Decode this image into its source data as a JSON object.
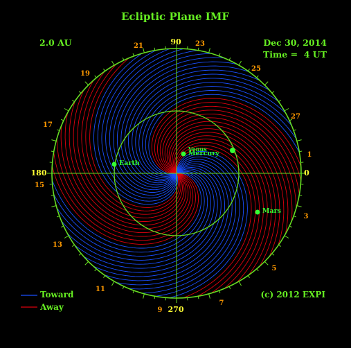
{
  "title": "Ecliptic Plane IMF",
  "scale_label": "2.0 AU",
  "date": "Dec 30, 2014",
  "time": "Time =  4 UT",
  "copyright": "(c) 2012 EXPI",
  "legend": {
    "toward": "Toward",
    "away": "Away"
  },
  "colors": {
    "toward": "#1a4fff",
    "away": "#e0000e",
    "grid": "#66dd22",
    "title": "#66ee22",
    "tick_label": "#ff9900",
    "angle_label": "#ffff33",
    "planet": "#33ff33"
  },
  "angle_labels": [
    "90",
    "180",
    "0",
    "270"
  ],
  "rotation_labels": [
    "21",
    "23",
    "25",
    "27",
    "1",
    "3",
    "5",
    "7",
    "9",
    "11",
    "13",
    "15",
    "17",
    "19"
  ],
  "planets": [
    {
      "name": "Earth"
    },
    {
      "name": "Mercury"
    },
    {
      "name": "Venus"
    },
    {
      "name": ""
    },
    {
      "name": "Mars"
    }
  ]
}
